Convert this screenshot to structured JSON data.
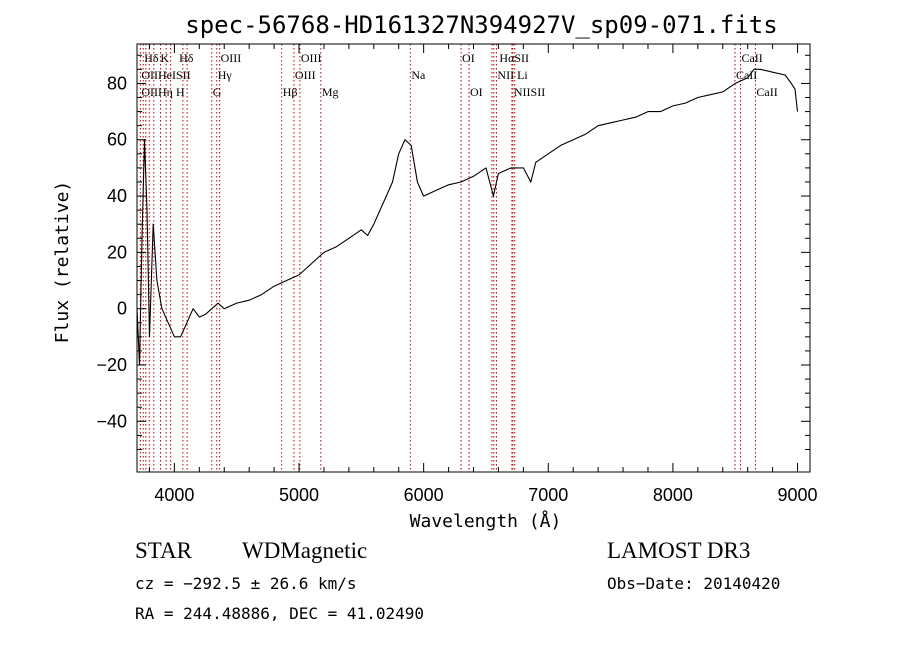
{
  "chart_data": {
    "type": "line",
    "title": "spec-56768-HD161327N394927V_sp09-071.fits",
    "xlabel": "Wavelength (Å)",
    "ylabel": "Flux (relative)",
    "xlim": [
      3700,
      9100
    ],
    "ylim": [
      -58,
      94
    ],
    "xticks": [
      4000,
      5000,
      6000,
      7000,
      8000,
      9000
    ],
    "xtick_labels": [
      "4000",
      "5000",
      "6000",
      "7000",
      "8000",
      "9000"
    ],
    "yticks": [
      -40,
      -20,
      0,
      20,
      40,
      60,
      80
    ],
    "ytick_labels": [
      "−40",
      "−20",
      "0",
      "20",
      "40",
      "60",
      "80"
    ],
    "series": [
      {
        "name": "flux",
        "x": [
          3700,
          3720,
          3740,
          3760,
          3780,
          3800,
          3830,
          3860,
          3900,
          3950,
          4000,
          4050,
          4100,
          4150,
          4200,
          4250,
          4300,
          4350,
          4400,
          4500,
          4600,
          4700,
          4800,
          4900,
          5000,
          5100,
          5200,
          5300,
          5400,
          5500,
          5550,
          5600,
          5650,
          5700,
          5750,
          5800,
          5850,
          5900,
          5950,
          6000,
          6100,
          6200,
          6300,
          6400,
          6500,
          6560,
          6600,
          6700,
          6800,
          6860,
          6900,
          7000,
          7100,
          7200,
          7300,
          7400,
          7500,
          7600,
          7700,
          7800,
          7900,
          8000,
          8100,
          8200,
          8300,
          8400,
          8500,
          8600,
          8650,
          8700,
          8800,
          8900,
          8950,
          8980,
          9000
        ],
        "y": [
          0,
          -20,
          25,
          60,
          35,
          -10,
          30,
          10,
          0,
          -5,
          -10,
          -10,
          -5,
          0,
          -3,
          -2,
          0,
          2,
          0,
          2,
          3,
          5,
          8,
          10,
          12,
          16,
          20,
          22,
          25,
          28,
          26,
          30,
          35,
          40,
          45,
          55,
          60,
          58,
          45,
          40,
          42,
          44,
          45,
          47,
          50,
          40,
          48,
          50,
          50,
          45,
          52,
          55,
          58,
          60,
          62,
          65,
          66,
          67,
          68,
          70,
          70,
          72,
          73,
          75,
          76,
          77,
          80,
          82,
          85,
          85,
          84,
          83,
          80,
          78,
          70
        ]
      }
    ],
    "spectral_lines": [
      {
        "label": "Hδ",
        "x": 3750,
        "row": 1
      },
      {
        "label": "K",
        "x": 3880,
        "row": 1
      },
      {
        "label": "Hδ",
        "x": 4030,
        "row": 1
      },
      {
        "label": "OIII",
        "x": 4363,
        "row": 1
      },
      {
        "label": "OIII",
        "x": 5007,
        "row": 1
      },
      {
        "label": "OI",
        "x": 6300,
        "row": 1
      },
      {
        "label": "HαSII",
        "x": 6600,
        "row": 1
      },
      {
        "label": "CaII",
        "x": 8542,
        "row": 1
      },
      {
        "label": "OIIHeISII",
        "x": 3727,
        "row": 2
      },
      {
        "label": "Hγ",
        "x": 4340,
        "row": 2
      },
      {
        "label": "OIII",
        "x": 4959,
        "row": 2
      },
      {
        "label": "Na",
        "x": 5893,
        "row": 2
      },
      {
        "label": "NII Li",
        "x": 6584,
        "row": 2
      },
      {
        "label": "CaII",
        "x": 8498,
        "row": 2
      },
      {
        "label": "OIIHη H",
        "x": 3727,
        "row": 3
      },
      {
        "label": "G",
        "x": 4300,
        "row": 3
      },
      {
        "label": "Hβ",
        "x": 4861,
        "row": 3
      },
      {
        "label": "Mg",
        "x": 5175,
        "row": 3
      },
      {
        "label": "OI",
        "x": 6364,
        "row": 3
      },
      {
        "label": "NIISII",
        "x": 6716,
        "row": 3
      },
      {
        "label": "CaII",
        "x": 8662,
        "row": 3
      }
    ],
    "line_markers": [
      3727,
      3750,
      3771,
      3798,
      3835,
      3889,
      3934,
      3970,
      4068,
      4102,
      4300,
      4340,
      4363,
      4861,
      4959,
      5007,
      5175,
      5893,
      6300,
      6364,
      6548,
      6563,
      6584,
      6708,
      6716,
      6731,
      8498,
      8542,
      8662
    ]
  },
  "info": {
    "class": "STAR",
    "subclass": "WDMagnetic",
    "survey": "LAMOST DR3",
    "cz": "cz = −292.5 ± 26.6 km/s",
    "obs_date": "Obs−Date: 20140420",
    "coords": "RA = 244.48886, DEC =  41.02490"
  }
}
